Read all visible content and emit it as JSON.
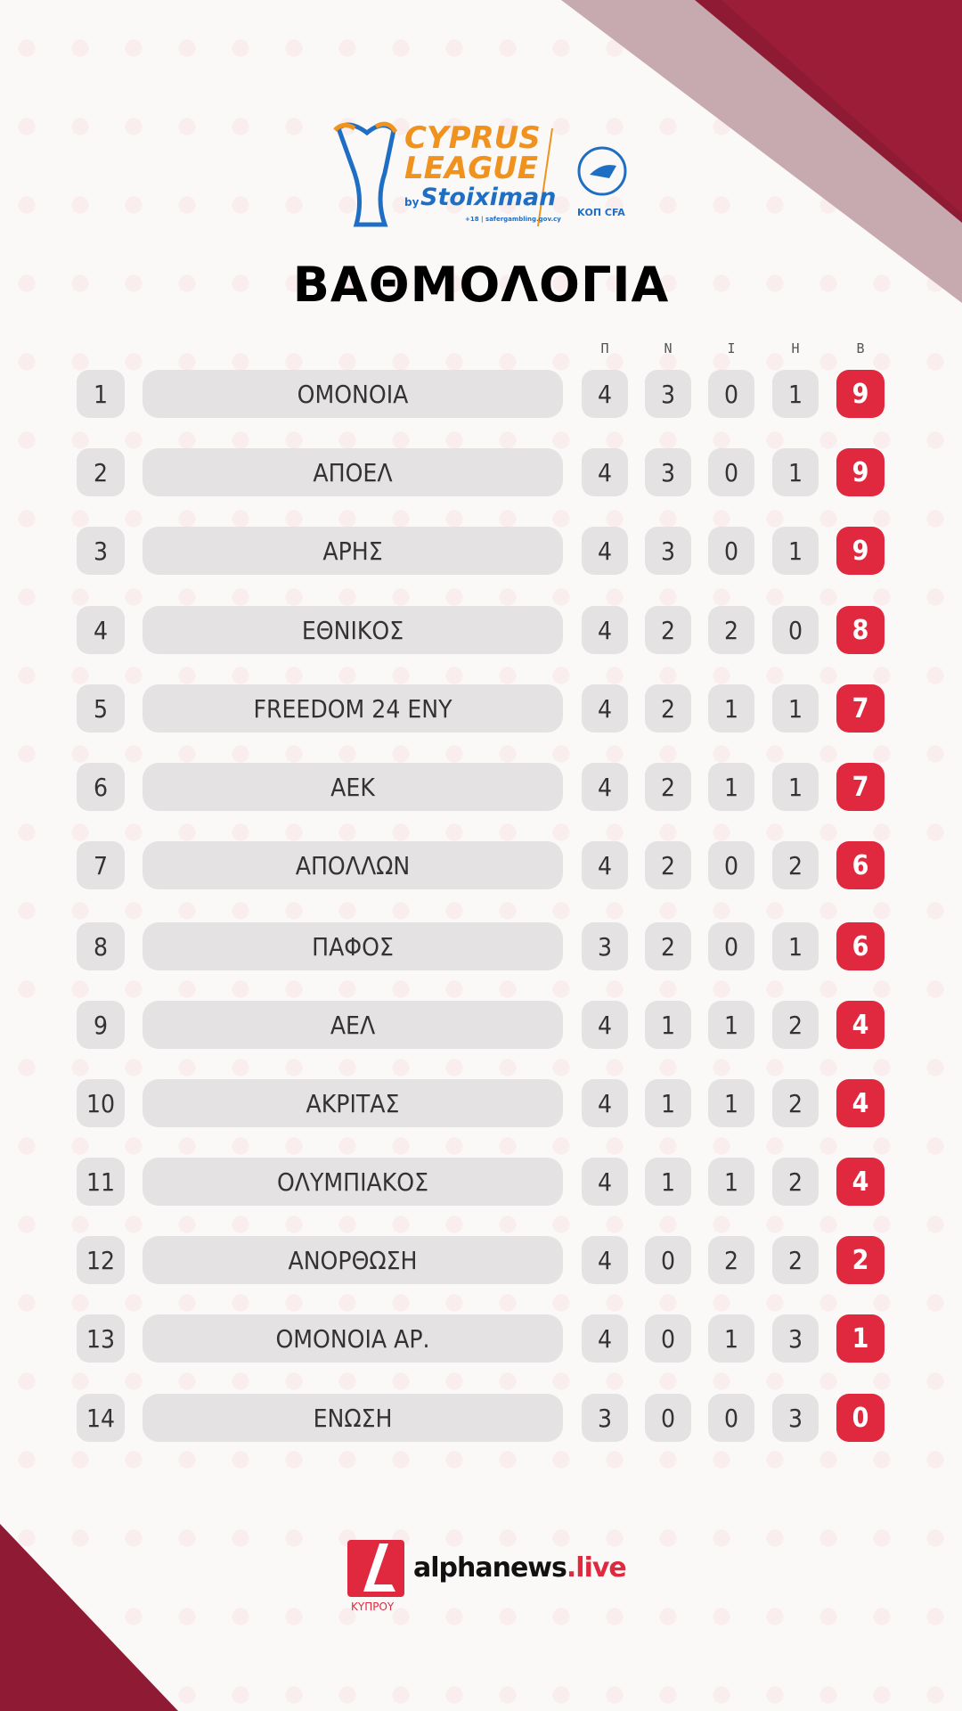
{
  "header": {
    "league_line1": "CYPRUS",
    "league_line2": "LEAGUE",
    "sponsor_by": "by",
    "sponsor": "Stoiximan",
    "disclaimer": "+18 | safergambling.gov.cy",
    "federation": "ΚΟΠ CFA",
    "title": "ΒΑΘΜΟΛΟΓΙΑ"
  },
  "columns": [
    "Π",
    "Ν",
    "Ι",
    "Η",
    "Β"
  ],
  "standings": [
    {
      "pos": "1",
      "team": "ΟΜΟΝΟΙΑ",
      "p": "4",
      "w": "3",
      "d": "0",
      "l": "1",
      "pts": "9"
    },
    {
      "pos": "2",
      "team": "ΑΠΟΕΛ",
      "p": "4",
      "w": "3",
      "d": "0",
      "l": "1",
      "pts": "9"
    },
    {
      "pos": "3",
      "team": "ΑΡΗΣ",
      "p": "4",
      "w": "3",
      "d": "0",
      "l": "1",
      "pts": "9"
    },
    {
      "pos": "4",
      "team": "ΕΘΝΙΚΟΣ",
      "p": "4",
      "w": "2",
      "d": "2",
      "l": "0",
      "pts": "8"
    },
    {
      "pos": "5",
      "team": "FREEDOM 24 ΕΝΥ",
      "p": "4",
      "w": "2",
      "d": "1",
      "l": "1",
      "pts": "7"
    },
    {
      "pos": "6",
      "team": "ΑΕΚ",
      "p": "4",
      "w": "2",
      "d": "1",
      "l": "1",
      "pts": "7"
    },
    {
      "pos": "7",
      "team": "ΑΠΟΛΛΩΝ",
      "p": "4",
      "w": "2",
      "d": "0",
      "l": "2",
      "pts": "6"
    },
    {
      "pos": "8",
      "team": "ΠΑΦΟΣ",
      "p": "3",
      "w": "2",
      "d": "0",
      "l": "1",
      "pts": "6"
    },
    {
      "pos": "9",
      "team": "ΑΕΛ",
      "p": "4",
      "w": "1",
      "d": "1",
      "l": "2",
      "pts": "4"
    },
    {
      "pos": "10",
      "team": "ΑΚΡΙΤΑΣ",
      "p": "4",
      "w": "1",
      "d": "1",
      "l": "2",
      "pts": "4"
    },
    {
      "pos": "11",
      "team": "ΟΛΥΜΠΙΑΚΟΣ",
      "p": "4",
      "w": "1",
      "d": "1",
      "l": "2",
      "pts": "4"
    },
    {
      "pos": "12",
      "team": "ΑΝΟΡΘΩΣΗ",
      "p": "4",
      "w": "0",
      "d": "2",
      "l": "2",
      "pts": "2"
    },
    {
      "pos": "13",
      "team": "ΟΜΟΝΟΙΑ ΑΡ.",
      "p": "4",
      "w": "0",
      "d": "1",
      "l": "3",
      "pts": "1"
    },
    {
      "pos": "14",
      "team": "ΕΝΩΣΗ",
      "p": "3",
      "w": "0",
      "d": "0",
      "l": "3",
      "pts": "0"
    }
  ],
  "footer": {
    "brand": "alphanews",
    "brand_suffix": ".live",
    "region": "ΚΥΠΡΟΥ"
  },
  "colors": {
    "accent": "#e0283e",
    "maroon": "#8e1b33",
    "league_orange": "#f0921e",
    "league_blue": "#1e6fc4"
  }
}
